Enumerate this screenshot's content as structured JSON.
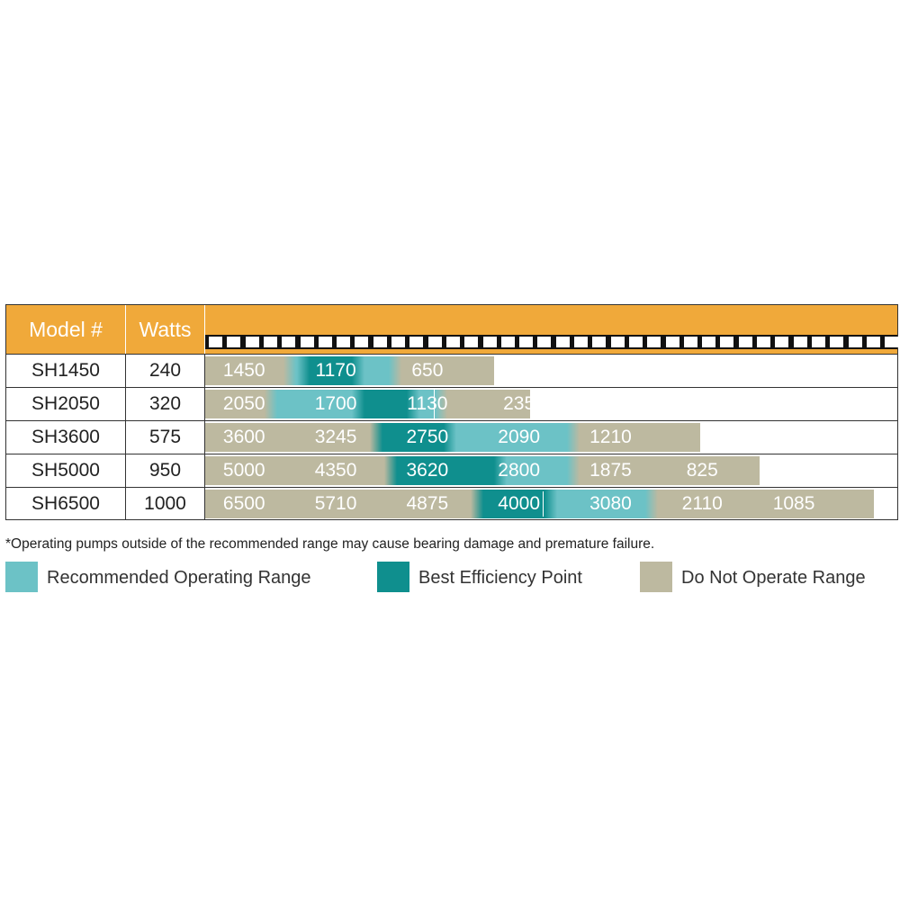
{
  "colors": {
    "header": "#f0a93a",
    "recommended": "#6cc2c6",
    "best_efficiency": "#0f8f8e",
    "do_not_operate": "#bdb9a0"
  },
  "chart_data": {
    "type": "table",
    "columns": [
      "Model #",
      "Watts"
    ],
    "rows": [
      {
        "model": "SH1450",
        "watts": "240",
        "flow_labels": [
          "1450",
          "1170",
          "650"
        ],
        "zones": [
          [
            "dno",
            0,
            1.7
          ],
          [
            "rec",
            1.7,
            2.0
          ],
          [
            "bep",
            2.0,
            3.2
          ],
          [
            "rec",
            3.2,
            4.0
          ],
          [
            "dno",
            4.0,
            6.3
          ]
        ]
      },
      {
        "model": "SH2050",
        "watts": "320",
        "flow_labels": [
          "2050",
          "1700",
          "1130",
          "235"
        ],
        "zones": [
          [
            "dno",
            0,
            1.3
          ],
          [
            "rec",
            1.3,
            3.2
          ],
          [
            "bep",
            3.2,
            4.4
          ],
          [
            "rec",
            4.4,
            5.0
          ],
          [
            "dno",
            5.0,
            7.1
          ]
        ]
      },
      {
        "model": "SH3600",
        "watts": "575",
        "flow_labels": [
          "3600",
          "3245",
          "2750",
          "2090",
          "1210"
        ],
        "zones": [
          [
            "dno",
            0,
            3.6
          ],
          [
            "bep",
            3.6,
            5.2
          ],
          [
            "rec",
            5.2,
            7.9
          ],
          [
            "dno",
            7.9,
            10.8
          ]
        ]
      },
      {
        "model": "SH5000",
        "watts": "950",
        "flow_labels": [
          "5000",
          "4350",
          "3620",
          "2800",
          "1875",
          "825"
        ],
        "zones": [
          [
            "dno",
            0,
            3.9
          ],
          [
            "bep",
            3.9,
            6.3
          ],
          [
            "rec",
            6.3,
            7.9
          ],
          [
            "dno",
            7.9,
            12.1
          ]
        ]
      },
      {
        "model": "SH6500",
        "watts": "1000",
        "flow_labels": [
          "6500",
          "5710",
          "4875",
          "4000",
          "3080",
          "2110",
          "1085"
        ],
        "zones": [
          [
            "dno",
            0,
            5.8
          ],
          [
            "bep",
            5.8,
            7.4
          ],
          [
            "rec",
            7.4,
            9.6
          ],
          [
            "dno",
            9.6,
            14.6
          ]
        ],
        "bep_marker": 7.4
      }
    ]
  },
  "footnote": "*Operating pumps outside of the recommended range may cause bearing damage and premature failure.",
  "legend": [
    {
      "label": "Recommended Operating Range",
      "zone": "rec"
    },
    {
      "label": "Best Efficiency Point",
      "zone": "bep"
    },
    {
      "label": "Do Not Operate Range",
      "zone": "dno"
    }
  ]
}
